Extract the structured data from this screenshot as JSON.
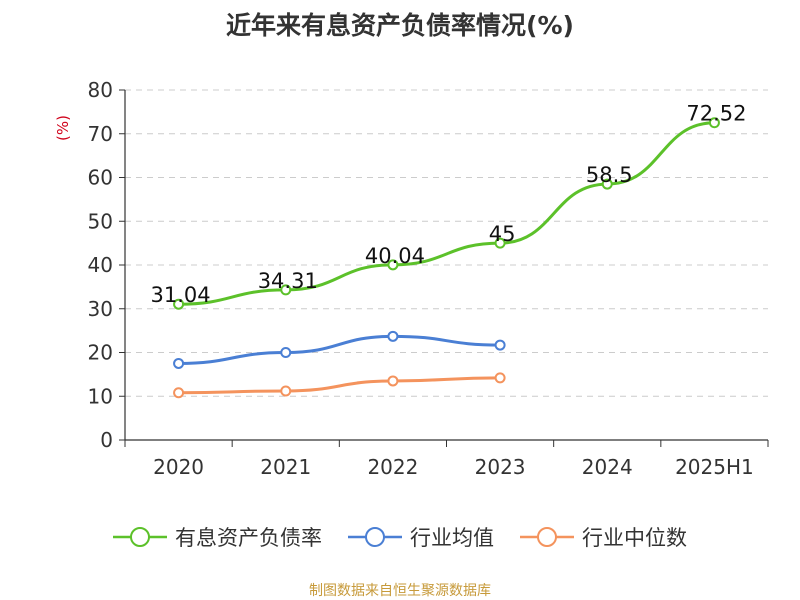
{
  "chart_data": {
    "type": "line",
    "title": "近年来有息资产负债率情况(%)",
    "ylabel": "(%)",
    "xlabel": "",
    "categories": [
      "2020",
      "2021",
      "2022",
      "2023",
      "2024",
      "2025H1"
    ],
    "ylim": [
      0,
      80
    ],
    "yticks": [
      0,
      10,
      20,
      30,
      40,
      50,
      60,
      70,
      80
    ],
    "grid": true,
    "legend_position": "bottom",
    "series": [
      {
        "name": "有息资产负债率",
        "color": "#5cc12a",
        "values": [
          31.04,
          34.31,
          40.04,
          45,
          58.5,
          72.52
        ],
        "labels": [
          "31.04",
          "34.31",
          "40.04",
          "45",
          "58.5",
          "72.52"
        ],
        "show_labels": true
      },
      {
        "name": "行业均值",
        "color": "#4a7fd4",
        "values": [
          17.5,
          20.0,
          23.7,
          21.7,
          null,
          null
        ],
        "show_labels": false
      },
      {
        "name": "行业中位数",
        "color": "#f4935d",
        "values": [
          10.8,
          11.2,
          13.5,
          14.2,
          null,
          null
        ],
        "show_labels": false
      }
    ]
  },
  "source_text": "制图数据来自恒生聚源数据库"
}
